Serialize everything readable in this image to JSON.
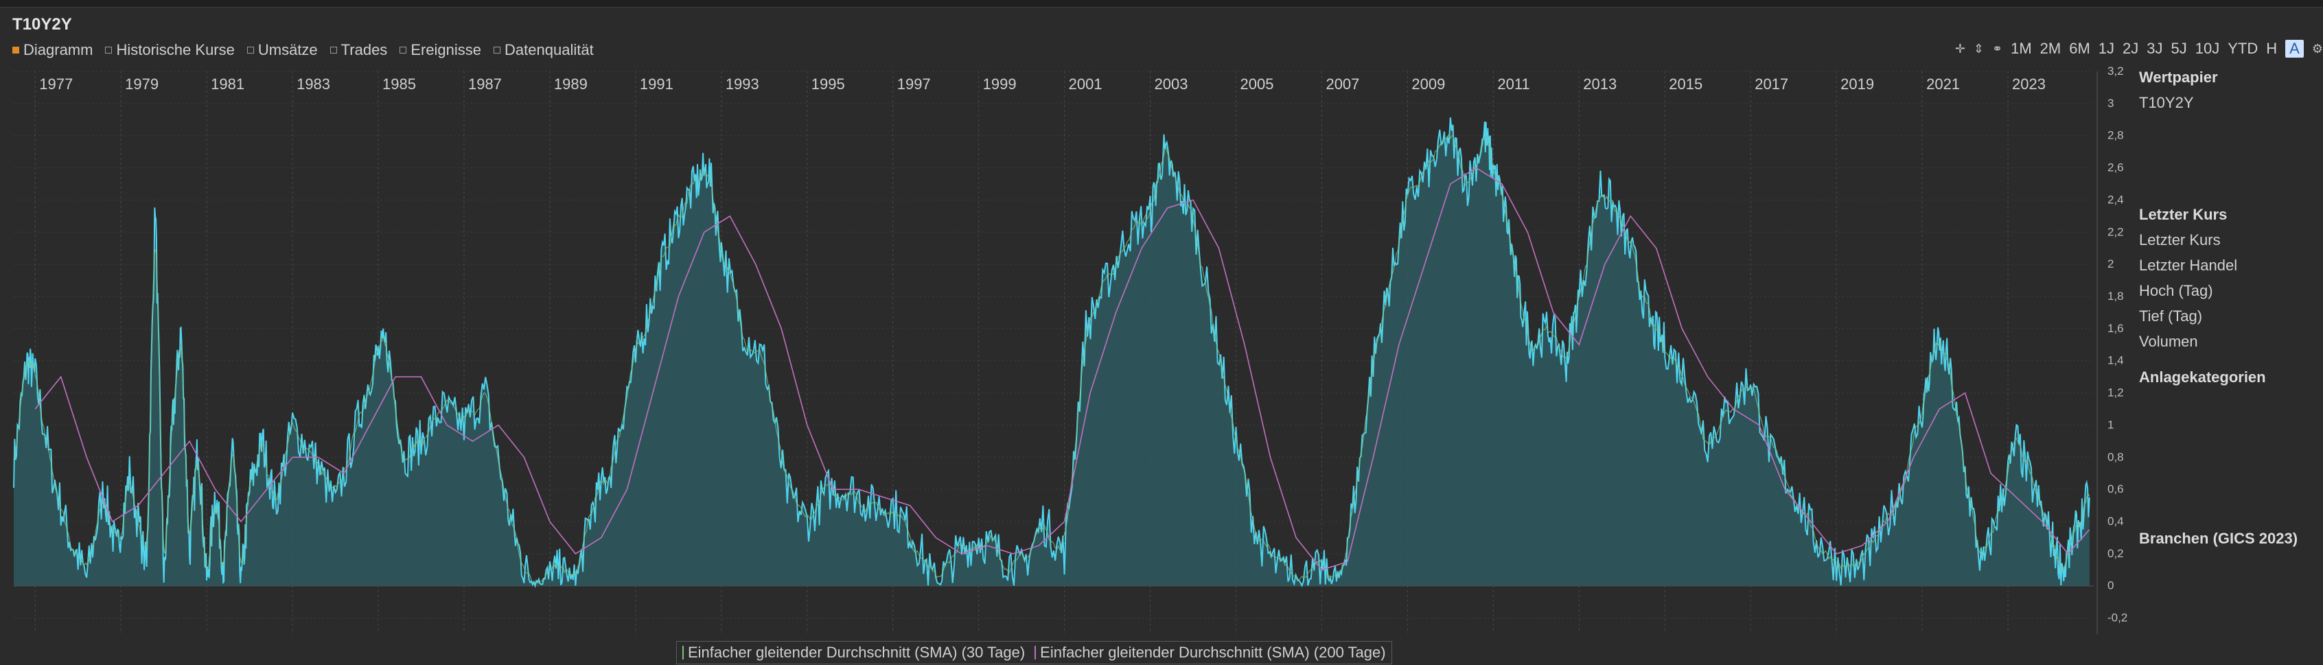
{
  "title": "T10Y2Y",
  "tabs": [
    {
      "label": "Diagramm",
      "active": true
    },
    {
      "label": "Historische Kurse",
      "active": false
    },
    {
      "label": "Umsätze",
      "active": false
    },
    {
      "label": "Trades",
      "active": false
    },
    {
      "label": "Ereignisse",
      "active": false
    },
    {
      "label": "Datenqualität",
      "active": false
    }
  ],
  "toolbar": {
    "icons": [
      "crosshair-icon",
      "scale-icon",
      "link-icon"
    ],
    "ranges": [
      "1M",
      "2M",
      "6M",
      "1J",
      "2J",
      "3J",
      "5J",
      "10J",
      "YTD",
      "H",
      "A"
    ],
    "active_range": "A",
    "settings_icon": "gear-icon"
  },
  "side_panel": {
    "wertpapier_head": "Wertpapier",
    "wertpapier_value": "T10Y2Y",
    "letzter_kurs_head": "Letzter Kurs",
    "rows": [
      "Letzter Kurs",
      "Letzter Handel",
      "Hoch (Tag)",
      "Tief (Tag)",
      "Volumen"
    ],
    "anlagekategorien": "Anlagekategorien",
    "branchen": "Branchen (GICS 2023)"
  },
  "legend": [
    {
      "label": "Einfacher gleitender Durchschnitt (SMA) (30 Tage)",
      "color": "#7ec07e"
    },
    {
      "label": "Einfacher gleitender Durchschnitt (SMA) (200 Tage)",
      "color": "#c070c0"
    }
  ],
  "chart_data": {
    "type": "area",
    "x_ticks": [
      "1977",
      "1979",
      "1981",
      "1983",
      "1985",
      "1987",
      "1989",
      "1991",
      "1993",
      "1995",
      "1997",
      "1999",
      "2001",
      "2003",
      "2005",
      "2007",
      "2009",
      "2011",
      "2013",
      "2015",
      "2017",
      "2019",
      "2021",
      "2023"
    ],
    "y_ticks": [
      "3,2",
      "3",
      "2,8",
      "2,6",
      "2,4",
      "2,2",
      "2",
      "1,8",
      "1,6",
      "1,4",
      "1,2",
      "1",
      "0,8",
      "0,6",
      "0,4",
      "0,2",
      "0",
      "-0,2"
    ],
    "ylim": [
      -0.3,
      3.2
    ],
    "xlim": [
      1976.5,
      2025.0
    ],
    "colors": {
      "line": "#4fd3ee",
      "fill": "#2e5a60",
      "sma30": "#7ec07e",
      "sma200": "#c070c0"
    },
    "series": [
      {
        "x": [
          1976.5,
          1976.8,
          1977.0,
          1977.4,
          1977.8,
          1978.2,
          1978.6,
          1978.9,
          1979.2,
          1979.6,
          1979.8,
          1980.0,
          1980.2,
          1980.4,
          1980.6,
          1980.8,
          1981.0,
          1981.2,
          1981.4,
          1981.6,
          1981.8,
          1982.0,
          1982.3,
          1982.6,
          1983.0,
          1983.5,
          1984.0,
          1984.5,
          1984.9,
          1985.2,
          1985.6,
          1986.0,
          1986.5,
          1987.0,
          1987.5,
          1988.0,
          1988.4,
          1988.8,
          1989.2,
          1989.6,
          1990.0,
          1990.4,
          1990.8,
          1991.2,
          1991.6,
          1992.0,
          1992.4,
          1992.7,
          1993.0,
          1993.5,
          1994.0,
          1994.5,
          1995.0,
          1995.5,
          1996.0,
          1996.5,
          1997.0,
          1997.5,
          1998.0,
          1998.5,
          1999.0,
          1999.5,
          2000.0,
          2000.5,
          2001.0,
          2001.5,
          2002.0,
          2002.5,
          2003.0,
          2003.3,
          2003.6,
          2004.0,
          2004.5,
          2005.0,
          2005.5,
          2006.0,
          2006.5,
          2007.0,
          2007.4,
          2007.8,
          2008.2,
          2008.6,
          2009.0,
          2009.5,
          2010.0,
          2010.4,
          2010.8,
          2011.0,
          2011.3,
          2011.6,
          2011.9,
          2012.3,
          2012.7,
          2013.0,
          2013.5,
          2013.9,
          2014.3,
          2014.7,
          2015.0,
          2015.5,
          2016.0,
          2016.5,
          2017.0,
          2017.5,
          2018.0,
          2018.5,
          2019.0,
          2019.5,
          2020.0,
          2020.5,
          2021.0,
          2021.3,
          2021.6,
          2022.0,
          2022.4,
          2022.8,
          2023.2,
          2023.6,
          2024.0,
          2024.3,
          2024.6,
          2024.9
        ],
        "y": [
          0.75,
          1.4,
          1.3,
          0.7,
          0.3,
          0.05,
          0.6,
          0.2,
          0.7,
          0.1,
          2.4,
          0.0,
          1.0,
          1.6,
          0.2,
          0.9,
          0.0,
          0.6,
          0.1,
          0.9,
          0.0,
          0.6,
          0.9,
          0.5,
          1.0,
          0.8,
          0.5,
          1.0,
          1.4,
          1.5,
          0.8,
          0.9,
          1.1,
          1.0,
          1.2,
          0.5,
          0.1,
          0.0,
          0.1,
          0.0,
          0.5,
          0.7,
          1.2,
          1.6,
          2.0,
          2.3,
          2.5,
          2.6,
          2.1,
          1.6,
          1.4,
          0.6,
          0.4,
          0.6,
          0.6,
          0.5,
          0.5,
          0.3,
          0.0,
          0.2,
          0.3,
          0.2,
          0.1,
          0.4,
          0.2,
          1.6,
          1.9,
          2.2,
          2.3,
          2.7,
          2.5,
          2.3,
          1.6,
          0.9,
          0.3,
          0.1,
          0.05,
          0.1,
          0.0,
          0.6,
          1.4,
          1.9,
          2.4,
          2.6,
          2.8,
          2.5,
          2.8,
          2.6,
          2.3,
          1.8,
          1.5,
          1.6,
          1.4,
          1.8,
          2.5,
          2.3,
          2.0,
          1.6,
          1.5,
          1.3,
          0.9,
          1.1,
          1.3,
          0.8,
          0.6,
          0.3,
          0.15,
          0.1,
          0.3,
          0.6,
          1.1,
          1.5,
          1.4,
          0.7,
          0.1,
          0.5,
          0.9,
          0.6,
          0.3,
          0.1,
          0.35,
          0.55
        ]
      },
      {
        "name": "Einfacher gleitender Durchschnitt (SMA) (200 Tage)",
        "x": [
          1977.0,
          1977.6,
          1978.2,
          1978.8,
          1979.4,
          1980.0,
          1980.6,
          1981.2,
          1981.8,
          1982.4,
          1983.0,
          1983.6,
          1984.2,
          1984.8,
          1985.4,
          1986.0,
          1986.6,
          1987.2,
          1987.8,
          1988.4,
          1989.0,
          1989.6,
          1990.2,
          1990.8,
          1991.4,
          1992.0,
          1992.6,
          1993.2,
          1993.8,
          1994.4,
          1995.0,
          1995.6,
          1996.2,
          1996.8,
          1997.4,
          1998.0,
          1998.6,
          1999.2,
          1999.8,
          2000.4,
          2001.0,
          2001.6,
          2002.2,
          2002.8,
          2003.4,
          2004.0,
          2004.6,
          2005.2,
          2005.8,
          2006.4,
          2007.0,
          2007.6,
          2008.2,
          2008.8,
          2009.4,
          2010.0,
          2010.6,
          2011.2,
          2011.8,
          2012.4,
          2013.0,
          2013.6,
          2014.2,
          2014.8,
          2015.4,
          2016.0,
          2016.6,
          2017.2,
          2017.8,
          2018.4,
          2019.0,
          2019.6,
          2020.2,
          2020.8,
          2021.4,
          2022.0,
          2022.6,
          2023.2,
          2023.8,
          2024.4,
          2024.9
        ],
        "y": [
          1.1,
          1.3,
          0.8,
          0.4,
          0.5,
          0.7,
          0.9,
          0.6,
          0.4,
          0.6,
          0.8,
          0.8,
          0.7,
          1.0,
          1.3,
          1.3,
          1.0,
          0.9,
          1.0,
          0.8,
          0.4,
          0.2,
          0.3,
          0.6,
          1.2,
          1.8,
          2.2,
          2.3,
          2.0,
          1.6,
          1.0,
          0.6,
          0.6,
          0.55,
          0.5,
          0.3,
          0.2,
          0.25,
          0.2,
          0.25,
          0.4,
          1.2,
          1.7,
          2.1,
          2.35,
          2.4,
          2.1,
          1.5,
          0.8,
          0.3,
          0.1,
          0.15,
          0.8,
          1.5,
          2.0,
          2.5,
          2.6,
          2.5,
          2.2,
          1.7,
          1.5,
          2.0,
          2.3,
          2.1,
          1.6,
          1.3,
          1.1,
          1.0,
          0.6,
          0.4,
          0.2,
          0.25,
          0.4,
          0.8,
          1.1,
          1.2,
          0.7,
          0.55,
          0.4,
          0.2,
          0.35
        ]
      }
    ]
  }
}
